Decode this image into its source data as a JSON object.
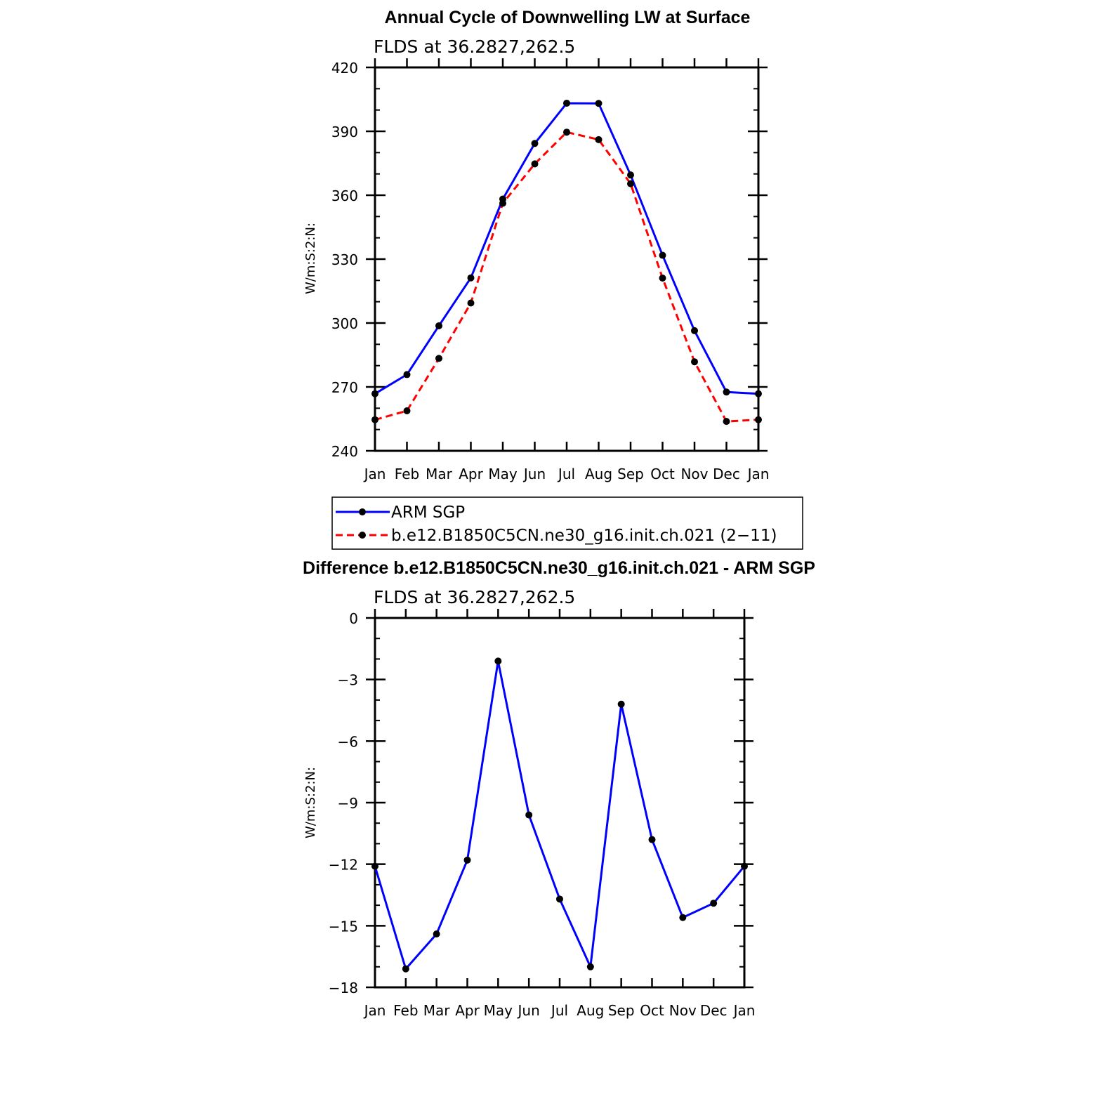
{
  "chart_data": [
    {
      "type": "line",
      "title": "Annual Cycle of Downwelling LW at Surface",
      "subtitle": "FLDS at 36.2827,262.5",
      "xlabel": "",
      "ylabel": "W/m:S:2:N:",
      "categories": [
        "Jan",
        "Feb",
        "Mar",
        "Apr",
        "May",
        "Jun",
        "Jul",
        "Aug",
        "Sep",
        "Oct",
        "Nov",
        "Dec",
        "Jan"
      ],
      "ylim": [
        240,
        420
      ],
      "yticks": [
        "240",
        "270",
        "300",
        "330",
        "360",
        "390",
        "420"
      ],
      "grid": false,
      "legend_position": "below",
      "series": [
        {
          "name": "ARM SGP",
          "color": "#0000ff",
          "dash": "solid",
          "values": [
            266.8,
            275.8,
            298.7,
            321.2,
            358.2,
            384.3,
            403.2,
            403.1,
            369.5,
            331.8,
            296.4,
            267.6,
            266.8
          ]
        },
        {
          "name": "b.e12.B1850C5CN.ne30_g16.init.ch.021 (2−11)",
          "color": "#ff0000",
          "dash": "dashed",
          "values": [
            254.6,
            258.8,
            283.4,
            309.4,
            356.2,
            374.7,
            389.6,
            386.1,
            365.4,
            321.1,
            281.8,
            253.8,
            254.6
          ]
        }
      ]
    },
    {
      "type": "line",
      "title": "Difference b.e12.B1850C5CN.ne30_g16.init.ch.021 - ARM SGP",
      "subtitle": "FLDS at 36.2827,262.5",
      "xlabel": "",
      "ylabel": "W/m:S:2:N:",
      "categories": [
        "Jan",
        "Feb",
        "Mar",
        "Apr",
        "May",
        "Jun",
        "Jul",
        "Aug",
        "Sep",
        "Oct",
        "Nov",
        "Dec",
        "Jan"
      ],
      "ylim": [
        -18,
        0
      ],
      "yticks": [
        "−18",
        "−15",
        "−12",
        "−9",
        "−6",
        "−3",
        "0"
      ],
      "grid": false,
      "series": [
        {
          "name": "",
          "color": "#0000ff",
          "dash": "solid",
          "values": [
            -12.1,
            -17.1,
            -15.4,
            -11.8,
            -2.1,
            -9.6,
            -13.7,
            -17.0,
            -4.2,
            -10.8,
            -14.6,
            -13.9,
            -12.1
          ]
        }
      ]
    }
  ]
}
